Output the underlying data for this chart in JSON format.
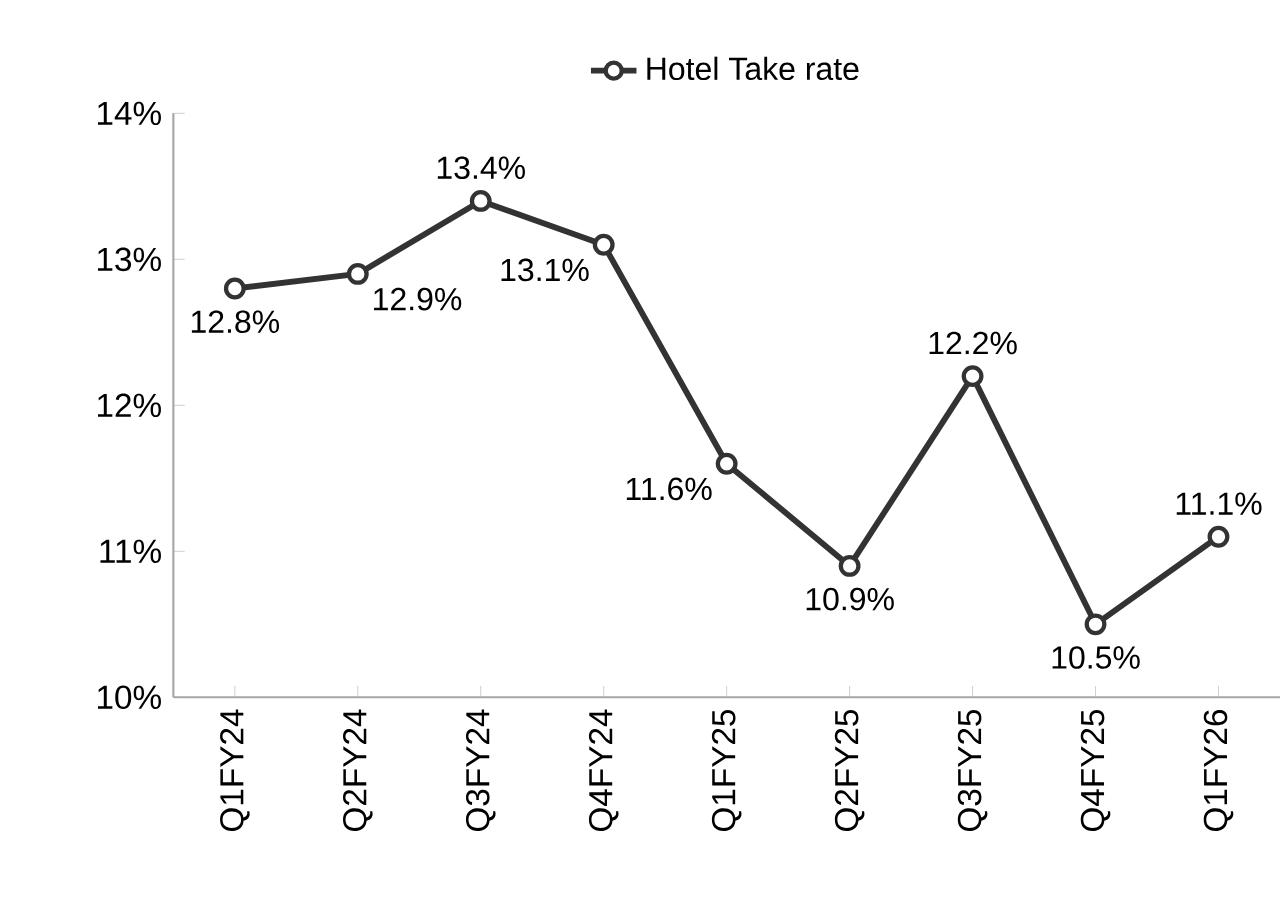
{
  "chart_data": {
    "type": "line",
    "categories": [
      "Q1FY24",
      "Q2FY24",
      "Q3FY24",
      "Q4FY24",
      "Q1FY25",
      "Q2FY25",
      "Q3FY25",
      "Q4FY25",
      "Q1FY26"
    ],
    "series": [
      {
        "name": "Hotel Take rate",
        "color": "#333333",
        "values": [
          12.8,
          12.9,
          13.4,
          13.1,
          11.6,
          10.9,
          12.2,
          10.5,
          11.1
        ],
        "value_labels": [
          "12.8%",
          "12.9%",
          "13.4%",
          "13.1%",
          "11.6%",
          "10.9%",
          "12.2%",
          "10.5%",
          "11.1%"
        ]
      }
    ],
    "ylim": [
      10,
      14
    ],
    "yticks": [
      {
        "value": 10,
        "label": "10%"
      },
      {
        "value": 11,
        "label": "11%"
      },
      {
        "value": 12,
        "label": "12%"
      },
      {
        "value": 13,
        "label": "13%"
      },
      {
        "value": 14,
        "label": "14%"
      }
    ],
    "marker": "circle",
    "legend": "top",
    "grid": false
  }
}
